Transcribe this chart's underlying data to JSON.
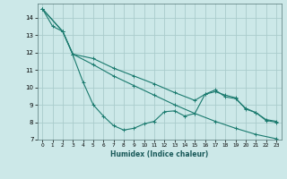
{
  "xlabel": "Humidex (Indice chaleur)",
  "bg_color": "#cce8e8",
  "grid_color": "#aacccc",
  "line_color": "#1a7a6e",
  "xlim": [
    -0.5,
    23.5
  ],
  "ylim": [
    7,
    14.8
  ],
  "yticks": [
    7,
    8,
    9,
    10,
    11,
    12,
    13,
    14
  ],
  "xticks": [
    0,
    1,
    2,
    3,
    4,
    5,
    6,
    7,
    8,
    9,
    10,
    11,
    12,
    13,
    14,
    15,
    16,
    17,
    18,
    19,
    20,
    21,
    22,
    23
  ],
  "line1_x": [
    0,
    1,
    2,
    3,
    4,
    5,
    6,
    7,
    8,
    9,
    10,
    11,
    12,
    13,
    14,
    15,
    16,
    17,
    18,
    19,
    20,
    21,
    22,
    23
  ],
  "line1_y": [
    14.5,
    13.5,
    13.2,
    11.85,
    10.3,
    9.0,
    8.35,
    7.8,
    7.55,
    7.65,
    7.9,
    8.05,
    8.6,
    8.65,
    8.35,
    8.5,
    9.6,
    9.75,
    9.55,
    9.4,
    8.75,
    8.55,
    8.1,
    8.0
  ],
  "line2_x": [
    0,
    2,
    3,
    5,
    7,
    9,
    11,
    13,
    15,
    17,
    19,
    21,
    23
  ],
  "line2_y": [
    14.5,
    13.2,
    11.9,
    11.3,
    10.65,
    10.1,
    9.55,
    9.0,
    8.5,
    8.05,
    7.65,
    7.3,
    7.05
  ],
  "line3_x": [
    0,
    2,
    3,
    5,
    7,
    9,
    11,
    13,
    15,
    16,
    17,
    18,
    19,
    20,
    21,
    22,
    23
  ],
  "line3_y": [
    14.5,
    13.2,
    11.9,
    11.65,
    11.1,
    10.65,
    10.2,
    9.7,
    9.25,
    9.6,
    9.85,
    9.45,
    9.35,
    8.8,
    8.55,
    8.15,
    8.05
  ]
}
